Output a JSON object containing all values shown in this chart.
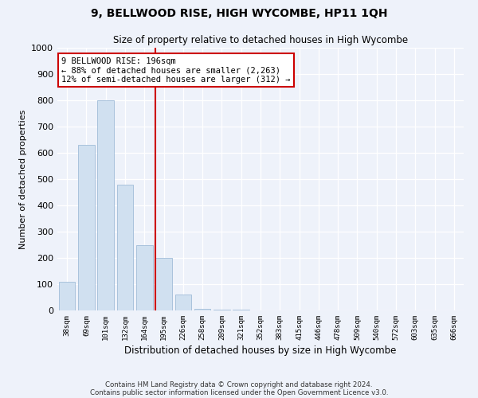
{
  "title": "9, BELLWOOD RISE, HIGH WYCOMBE, HP11 1QH",
  "subtitle": "Size of property relative to detached houses in High Wycombe",
  "xlabel": "Distribution of detached houses by size in High Wycombe",
  "ylabel": "Number of detached properties",
  "categories": [
    "38sqm",
    "69sqm",
    "101sqm",
    "132sqm",
    "164sqm",
    "195sqm",
    "226sqm",
    "258sqm",
    "289sqm",
    "321sqm",
    "352sqm",
    "383sqm",
    "415sqm",
    "446sqm",
    "478sqm",
    "509sqm",
    "540sqm",
    "572sqm",
    "603sqm",
    "635sqm",
    "666sqm"
  ],
  "values": [
    110,
    630,
    800,
    480,
    250,
    200,
    60,
    5,
    3,
    2,
    1,
    1,
    0,
    0,
    0,
    0,
    0,
    0,
    0,
    0,
    0
  ],
  "bar_color": "#d0e0f0",
  "bar_edge_color": "#a0bcd8",
  "highlight_index": 5,
  "highlight_color": "#cc0000",
  "ylim": [
    0,
    1000
  ],
  "yticks": [
    0,
    100,
    200,
    300,
    400,
    500,
    600,
    700,
    800,
    900,
    1000
  ],
  "annotation_text": "9 BELLWOOD RISE: 196sqm\n← 88% of detached houses are smaller (2,263)\n12% of semi-detached houses are larger (312) →",
  "annotation_box_color": "#ffffff",
  "annotation_box_edge_color": "#cc0000",
  "footer_line1": "Contains HM Land Registry data © Crown copyright and database right 2024.",
  "footer_line2": "Contains public sector information licensed under the Open Government Licence v3.0.",
  "background_color": "#eef2fa",
  "grid_color": "#ffffff",
  "plot_area_color": "#eef2fa"
}
